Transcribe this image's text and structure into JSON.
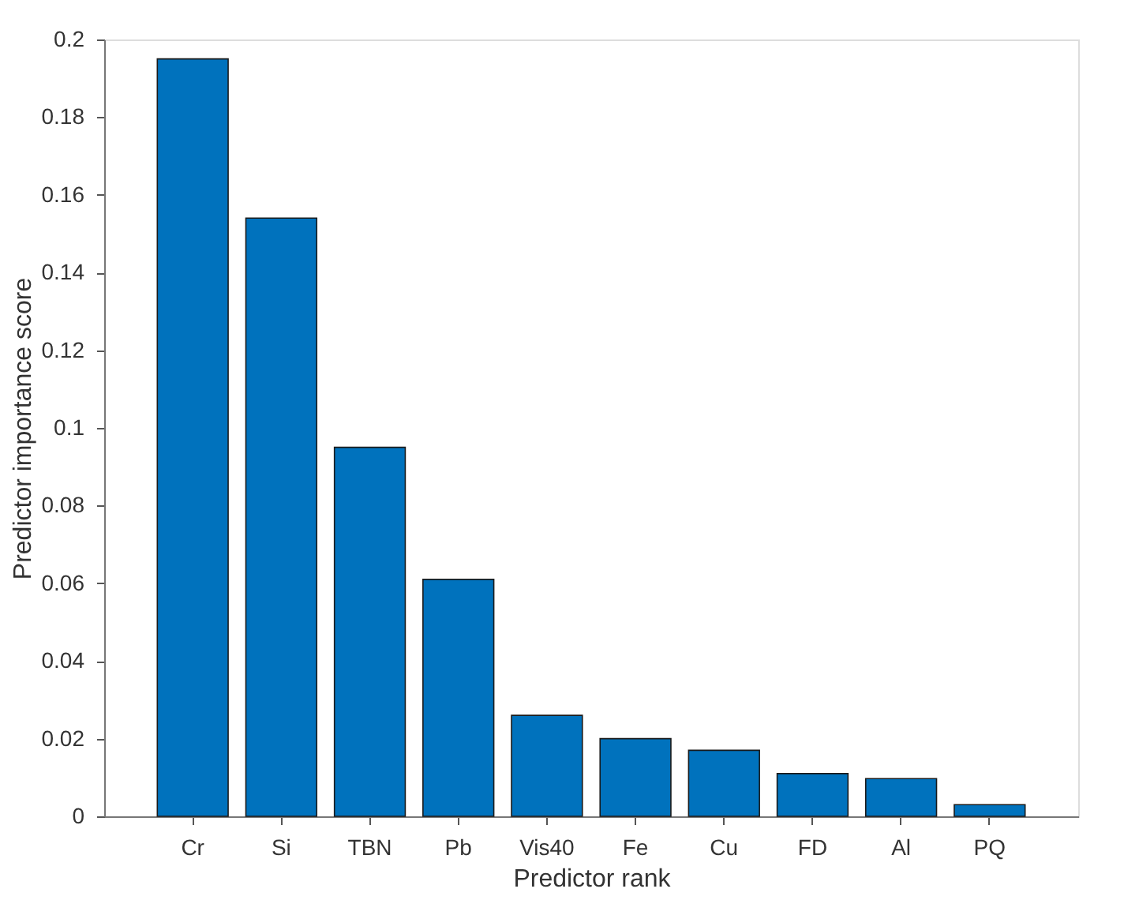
{
  "chart_data": {
    "type": "bar",
    "xlabel": "Predictor rank",
    "ylabel": "Predictor importance score",
    "categories": [
      "Cr",
      "Si",
      "TBN",
      "Pb",
      "Vis40",
      "Fe",
      "Cu",
      "FD",
      "Al",
      "PQ"
    ],
    "values": [
      0.195,
      0.154,
      0.095,
      0.061,
      0.026,
      0.02,
      0.017,
      0.011,
      0.0097,
      0.003
    ],
    "color": "#0072bd",
    "ylim": [
      0,
      0.2
    ],
    "yticks": [
      0,
      0.02,
      0.04,
      0.06,
      0.08,
      0.1,
      0.12,
      0.14,
      0.16,
      0.18,
      0.2
    ],
    "grid": false
  }
}
